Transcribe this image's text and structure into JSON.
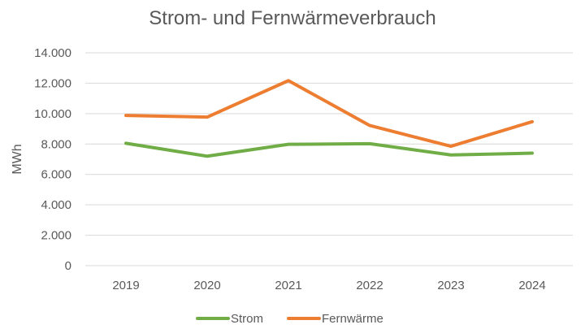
{
  "chart_data": {
    "type": "line",
    "title": "Strom- und Fernwärmeverbrauch",
    "xlabel": "",
    "ylabel": "MWh",
    "categories": [
      "2019",
      "2020",
      "2021",
      "2022",
      "2023",
      "2024"
    ],
    "ylim": [
      0,
      14000
    ],
    "yticks": [
      0,
      2000,
      4000,
      6000,
      8000,
      10000,
      12000,
      14000
    ],
    "ytick_labels": [
      "0",
      "2.000",
      "4.000",
      "6.000",
      "8.000",
      "10.000",
      "12.000",
      "14.000"
    ],
    "grid": true,
    "legend_position": "bottom",
    "series": [
      {
        "name": "Strom",
        "color": "#70ad47",
        "values": [
          8050,
          7200,
          7980,
          8020,
          7280,
          7400
        ]
      },
      {
        "name": "Fernwärme",
        "color": "#ed7d31",
        "values": [
          9880,
          9770,
          12170,
          9220,
          7850,
          9470
        ]
      }
    ]
  }
}
